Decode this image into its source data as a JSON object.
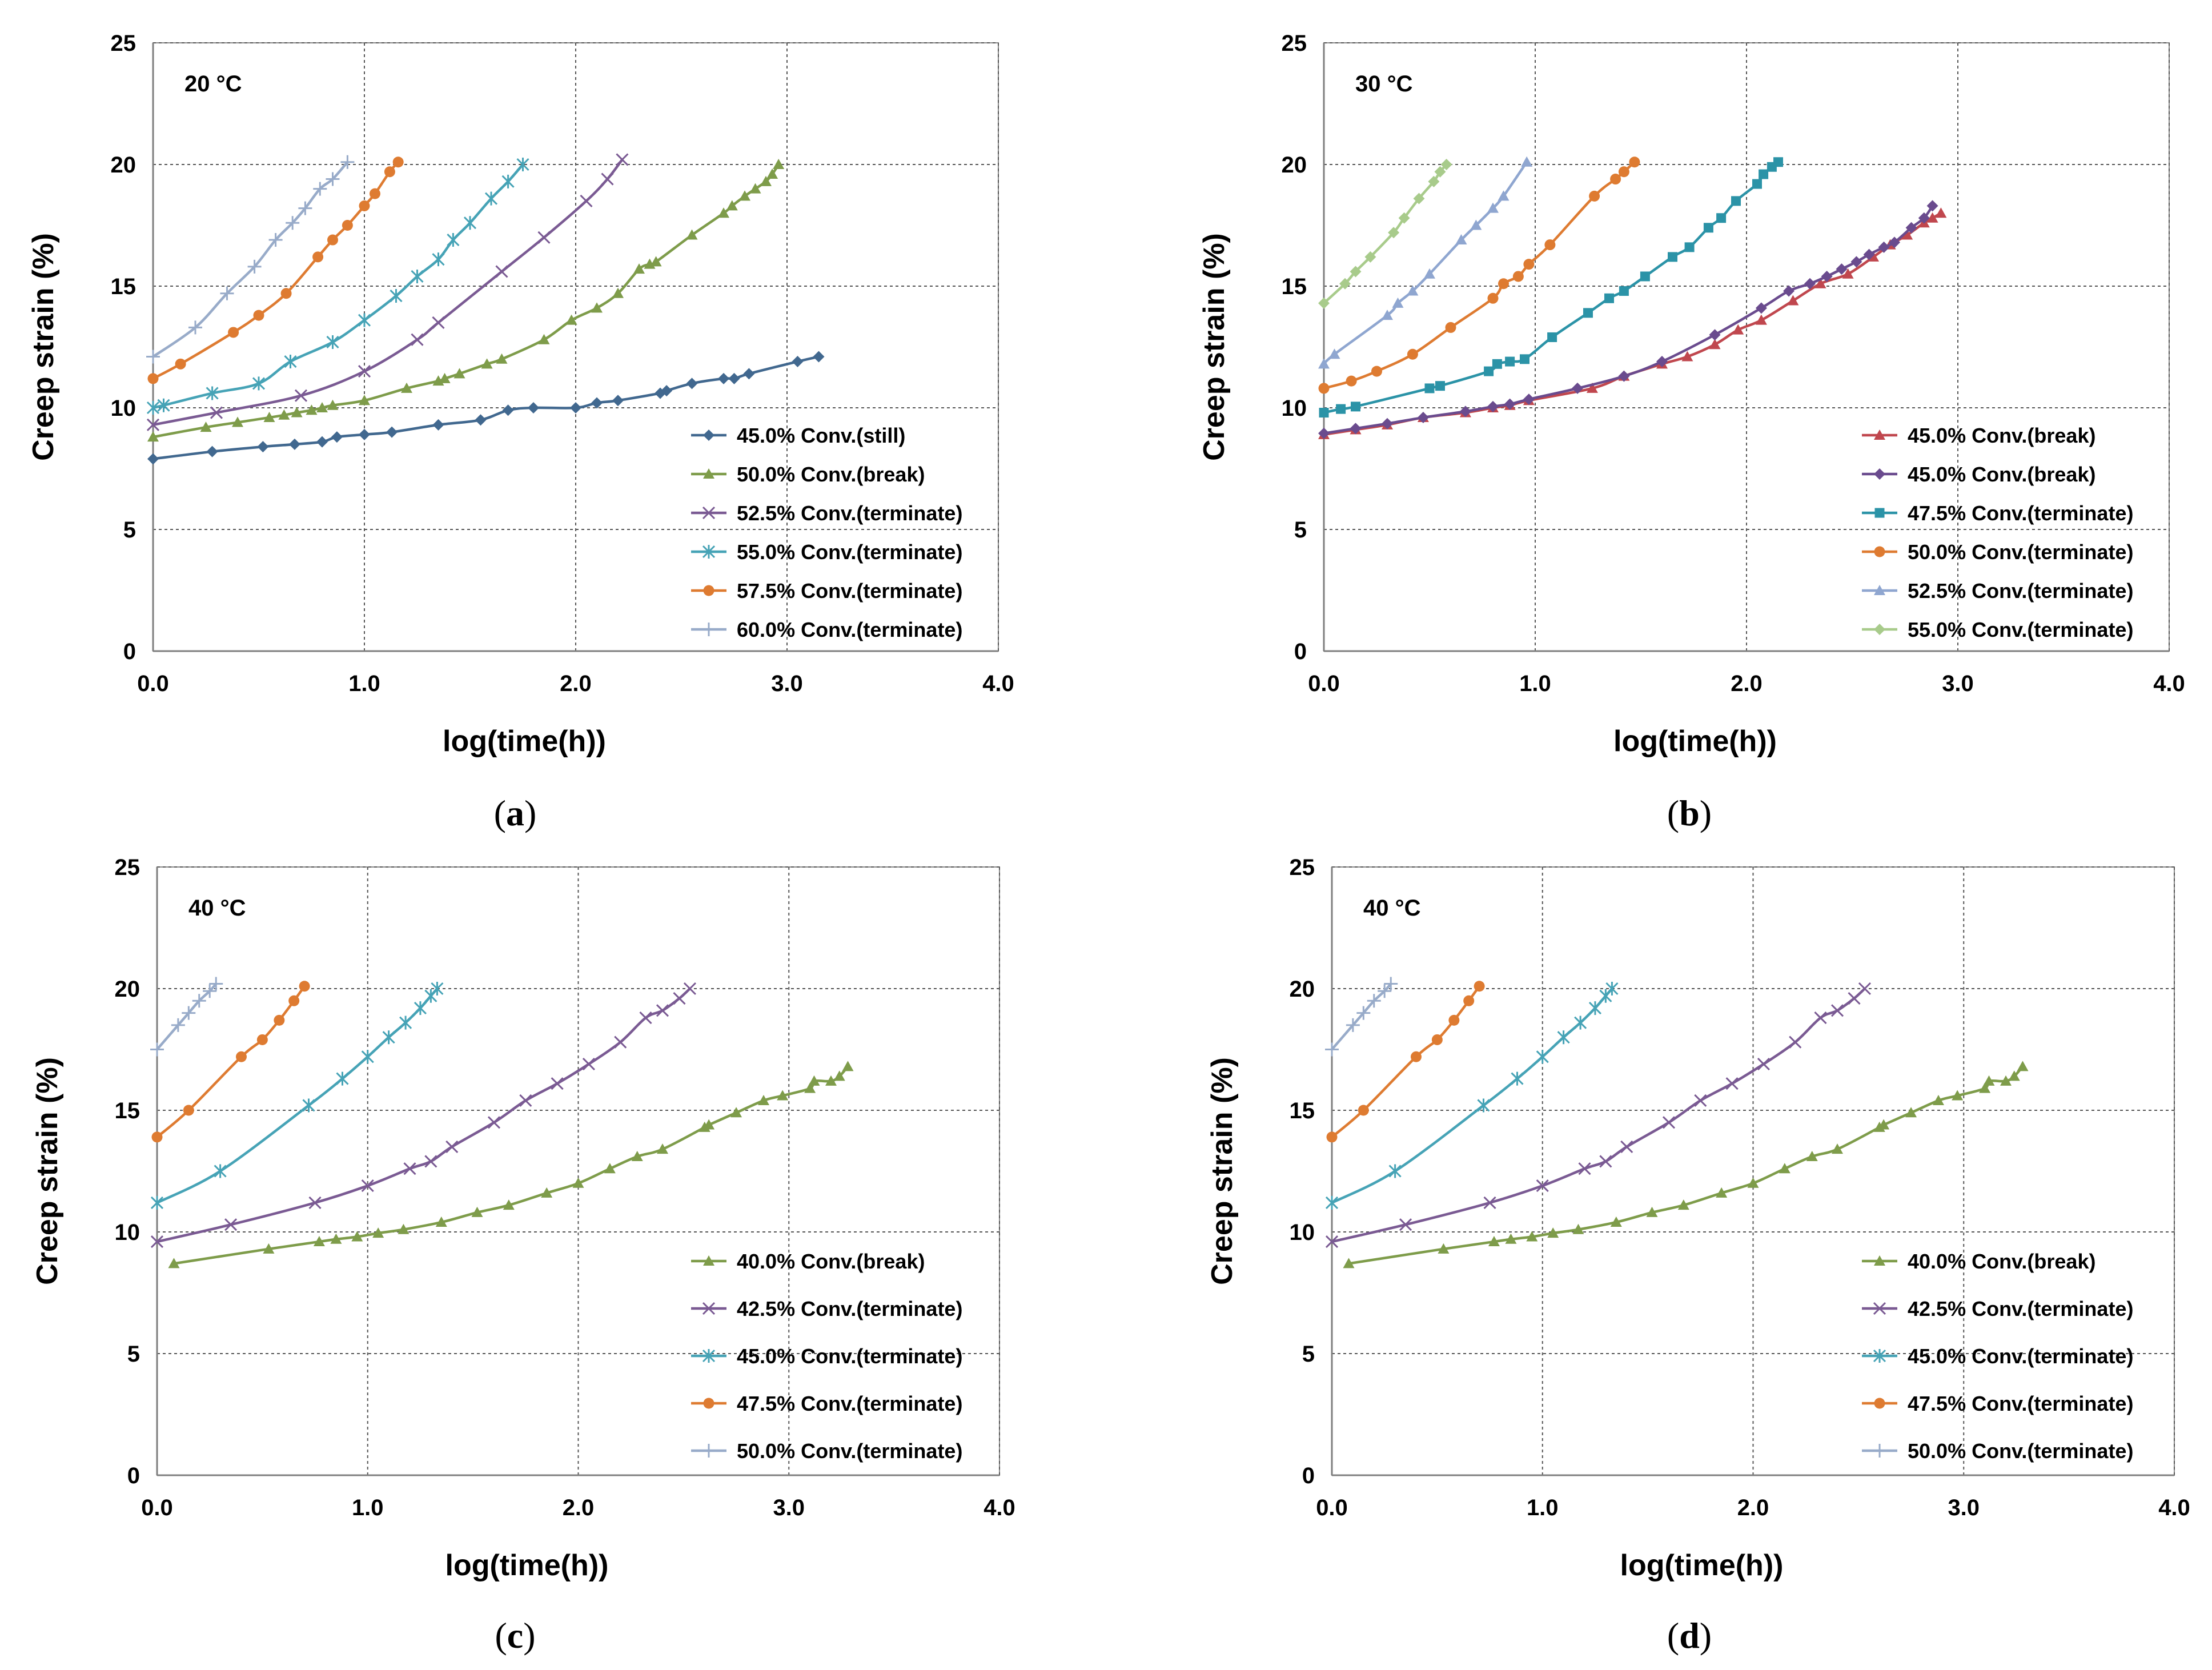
{
  "figure": {
    "captions": [
      "(a)",
      "(b)",
      "(c)",
      "(d)"
    ]
  },
  "chart_data": [
    {
      "type": "line",
      "panel": "a",
      "caption_letter": "a",
      "temperature_label": "20 °C",
      "xlabel": "log(time(h))",
      "ylabel": "Creep strain (%)",
      "xlim": [
        0,
        4
      ],
      "ylim": [
        0,
        25
      ],
      "xticks": [
        "0.0",
        "1.0",
        "2.0",
        "3.0",
        "4.0"
      ],
      "yticks": [
        "0",
        "5",
        "10",
        "15",
        "20",
        "25"
      ],
      "grid": true,
      "legend_position": "bottom-right",
      "series": [
        {
          "name": "45.0% Conv.(still)",
          "color": "#41688f",
          "marker": "diamond",
          "x": [
            0,
            0.28,
            0.52,
            0.67,
            0.8,
            0.87,
            1.0,
            1.13,
            1.35,
            1.55,
            1.68,
            1.8,
            2.0,
            2.1,
            2.2,
            2.4,
            2.43,
            2.55,
            2.7,
            2.75,
            2.82,
            3.05,
            3.15
          ],
          "y": [
            7.9,
            8.2,
            8.4,
            8.5,
            8.6,
            8.8,
            8.9,
            9.0,
            9.3,
            9.5,
            9.9,
            10.0,
            10.0,
            10.2,
            10.3,
            10.6,
            10.7,
            11.0,
            11.2,
            11.2,
            11.4,
            11.9,
            12.1
          ]
        },
        {
          "name": "50.0% Conv.(break)",
          "color": "#7e9c4a",
          "marker": "triangle",
          "x": [
            0,
            0.25,
            0.4,
            0.55,
            0.62,
            0.68,
            0.75,
            0.8,
            0.85,
            1.0,
            1.2,
            1.35,
            1.38,
            1.45,
            1.58,
            1.65,
            1.85,
            1.98,
            2.1,
            2.2,
            2.3,
            2.35,
            2.38,
            2.55,
            2.7,
            2.74,
            2.8,
            2.85,
            2.9,
            2.93,
            2.96
          ],
          "y": [
            8.8,
            9.2,
            9.4,
            9.6,
            9.7,
            9.8,
            9.9,
            10.0,
            10.1,
            10.3,
            10.8,
            11.1,
            11.2,
            11.4,
            11.8,
            12.0,
            12.8,
            13.6,
            14.1,
            14.7,
            15.7,
            15.9,
            16.0,
            17.1,
            18.0,
            18.3,
            18.7,
            19.0,
            19.3,
            19.6,
            20.0
          ]
        },
        {
          "name": "52.5% Conv.(terminate)",
          "color": "#7a5a93",
          "marker": "x",
          "x": [
            0,
            0.3,
            0.7,
            1.0,
            1.25,
            1.35,
            1.65,
            1.85,
            2.05,
            2.15,
            2.22
          ],
          "y": [
            9.3,
            9.8,
            10.5,
            11.5,
            12.8,
            13.5,
            15.6,
            17.0,
            18.5,
            19.4,
            20.2
          ]
        },
        {
          "name": "55.0% Conv.(terminate)",
          "color": "#46a3b6",
          "marker": "asterisk",
          "x": [
            0,
            0.05,
            0.28,
            0.5,
            0.65,
            0.85,
            1.0,
            1.15,
            1.25,
            1.35,
            1.42,
            1.5,
            1.6,
            1.68,
            1.75
          ],
          "y": [
            10.0,
            10.1,
            10.6,
            11.0,
            11.9,
            12.7,
            13.6,
            14.6,
            15.4,
            16.1,
            16.9,
            17.6,
            18.6,
            19.3,
            20.0
          ]
        },
        {
          "name": "57.5% Conv.(terminate)",
          "color": "#de7b31",
          "marker": "circle",
          "x": [
            0,
            0.13,
            0.38,
            0.5,
            0.63,
            0.78,
            0.85,
            0.92,
            1.0,
            1.05,
            1.12,
            1.16
          ],
          "y": [
            11.2,
            11.8,
            13.1,
            13.8,
            14.7,
            16.2,
            16.9,
            17.5,
            18.3,
            18.8,
            19.7,
            20.1
          ]
        },
        {
          "name": "60.0% Conv.(terminate)",
          "color": "#98abc9",
          "marker": "plus",
          "x": [
            0,
            0.2,
            0.35,
            0.48,
            0.58,
            0.66,
            0.72,
            0.79,
            0.85,
            0.92
          ],
          "y": [
            12.1,
            13.3,
            14.7,
            15.8,
            16.9,
            17.6,
            18.2,
            19.0,
            19.4,
            20.1
          ]
        }
      ]
    },
    {
      "type": "line",
      "panel": "b",
      "caption_letter": "b",
      "temperature_label": "30 °C",
      "xlabel": "log(time(h))",
      "ylabel": "Creep strain (%)",
      "xlim": [
        0,
        4
      ],
      "ylim": [
        0,
        25
      ],
      "xticks": [
        "0.0",
        "1.0",
        "2.0",
        "3.0",
        "4.0"
      ],
      "yticks": [
        "0",
        "5",
        "10",
        "15",
        "20",
        "25"
      ],
      "grid": true,
      "legend_position": "bottom-right",
      "series": [
        {
          "name": "45.0% Conv.(break)",
          "color": "#c0474e",
          "marker": "triangle",
          "x": [
            0,
            0.15,
            0.3,
            0.47,
            0.67,
            0.8,
            0.88,
            0.97,
            1.27,
            1.42,
            1.6,
            1.72,
            1.85,
            1.96,
            2.07,
            2.22,
            2.35,
            2.48,
            2.6,
            2.68,
            2.76,
            2.84,
            2.88,
            2.92
          ],
          "y": [
            8.9,
            9.1,
            9.3,
            9.6,
            9.8,
            10.0,
            10.1,
            10.3,
            10.8,
            11.3,
            11.8,
            12.1,
            12.6,
            13.2,
            13.6,
            14.4,
            15.1,
            15.5,
            16.2,
            16.7,
            17.1,
            17.6,
            17.8,
            18.0
          ]
        },
        {
          "name": "45.0% Conv.(break)",
          "color": "#6a4b8e",
          "marker": "diamond",
          "x": [
            0,
            0.15,
            0.3,
            0.47,
            0.67,
            0.8,
            0.88,
            0.97,
            1.2,
            1.42,
            1.6,
            1.85,
            2.07,
            2.2,
            2.3,
            2.38,
            2.45,
            2.52,
            2.58,
            2.65,
            2.7,
            2.78,
            2.84,
            2.88
          ],
          "y": [
            8.95,
            9.15,
            9.35,
            9.6,
            9.85,
            10.05,
            10.15,
            10.35,
            10.8,
            11.3,
            11.9,
            13.0,
            14.1,
            14.8,
            15.1,
            15.4,
            15.7,
            16.0,
            16.3,
            16.6,
            16.8,
            17.4,
            17.8,
            18.3
          ]
        },
        {
          "name": "47.5% Conv.(terminate)",
          "color": "#2b93a7",
          "marker": "square",
          "x": [
            0,
            0.08,
            0.15,
            0.5,
            0.55,
            0.78,
            0.82,
            0.88,
            0.95,
            1.08,
            1.25,
            1.35,
            1.42,
            1.52,
            1.65,
            1.73,
            1.82,
            1.88,
            1.95,
            2.05,
            2.08,
            2.12,
            2.15
          ],
          "y": [
            9.8,
            9.95,
            10.05,
            10.8,
            10.9,
            11.5,
            11.8,
            11.9,
            12.0,
            12.9,
            13.9,
            14.5,
            14.8,
            15.4,
            16.2,
            16.6,
            17.4,
            17.8,
            18.5,
            19.2,
            19.6,
            19.9,
            20.1
          ]
        },
        {
          "name": "50.0% Conv.(terminate)",
          "color": "#de7b31",
          "marker": "circle",
          "x": [
            0,
            0.13,
            0.25,
            0.42,
            0.6,
            0.8,
            0.85,
            0.92,
            0.97,
            1.07,
            1.28,
            1.38,
            1.42,
            1.47
          ],
          "y": [
            10.8,
            11.1,
            11.5,
            12.2,
            13.3,
            14.5,
            15.1,
            15.4,
            15.9,
            16.7,
            18.7,
            19.4,
            19.7,
            20.1
          ]
        },
        {
          "name": "52.5% Conv.(terminate)",
          "color": "#8fa6d0",
          "marker": "triangle",
          "x": [
            0,
            0.05,
            0.3,
            0.35,
            0.42,
            0.5,
            0.65,
            0.72,
            0.8,
            0.85,
            0.96
          ],
          "y": [
            11.8,
            12.2,
            13.8,
            14.3,
            14.8,
            15.5,
            16.9,
            17.5,
            18.2,
            18.7,
            20.1
          ]
        },
        {
          "name": "55.0% Conv.(terminate)",
          "color": "#a8cb8b",
          "marker": "diamond",
          "x": [
            0,
            0.1,
            0.15,
            0.22,
            0.33,
            0.38,
            0.45,
            0.52,
            0.55,
            0.58
          ],
          "y": [
            14.3,
            15.1,
            15.6,
            16.2,
            17.2,
            17.8,
            18.6,
            19.3,
            19.7,
            20.0
          ]
        }
      ]
    },
    {
      "type": "line",
      "panel": "c",
      "caption_letter": "c",
      "temperature_label": "40 °C",
      "xlabel": "log(time(h))",
      "ylabel": "Creep strain (%)",
      "xlim": [
        0,
        4
      ],
      "ylim": [
        0,
        25
      ],
      "xticks": [
        "0.0",
        "1.0",
        "2.0",
        "3.0",
        "4.0"
      ],
      "yticks": [
        "0",
        "5",
        "10",
        "15",
        "20",
        "25"
      ],
      "grid": true,
      "legend_position": "bottom-right",
      "series": [
        {
          "name": "40.0% Conv.(break)",
          "color": "#7e9c4a",
          "marker": "triangle",
          "x": [
            0.08,
            0.53,
            0.77,
            0.85,
            0.95,
            1.05,
            1.17,
            1.35,
            1.52,
            1.67,
            1.85,
            2.0,
            2.15,
            2.28,
            2.4,
            2.6,
            2.62,
            2.75,
            2.88,
            2.97,
            3.1,
            3.12,
            3.2,
            3.24,
            3.28
          ],
          "y": [
            8.7,
            9.3,
            9.6,
            9.7,
            9.8,
            9.95,
            10.1,
            10.4,
            10.8,
            11.1,
            11.6,
            12.0,
            12.6,
            13.1,
            13.4,
            14.3,
            14.4,
            14.9,
            15.4,
            15.6,
            15.9,
            16.2,
            16.2,
            16.4,
            16.8
          ]
        },
        {
          "name": "42.5% Conv.(terminate)",
          "color": "#7a5a93",
          "marker": "x",
          "x": [
            0,
            0.35,
            0.75,
            1.0,
            1.2,
            1.3,
            1.4,
            1.6,
            1.75,
            1.9,
            2.05,
            2.2,
            2.32,
            2.4,
            2.48,
            2.53
          ],
          "y": [
            9.6,
            10.3,
            11.2,
            11.9,
            12.6,
            12.9,
            13.5,
            14.5,
            15.4,
            16.1,
            16.9,
            17.8,
            18.8,
            19.1,
            19.6,
            20.0
          ]
        },
        {
          "name": "45.0% Conv.(terminate)",
          "color": "#46a3b6",
          "marker": "asterisk",
          "x": [
            0,
            0.3,
            0.72,
            0.88,
            1.0,
            1.1,
            1.18,
            1.25,
            1.3,
            1.33
          ],
          "y": [
            11.2,
            12.5,
            15.2,
            16.3,
            17.2,
            18.0,
            18.6,
            19.2,
            19.7,
            20.0
          ]
        },
        {
          "name": "47.5% Conv.(terminate)",
          "color": "#de7b31",
          "marker": "circle",
          "x": [
            0,
            0.15,
            0.4,
            0.5,
            0.58,
            0.65,
            0.7
          ],
          "y": [
            13.9,
            15.0,
            17.2,
            17.9,
            18.7,
            19.5,
            20.1
          ]
        },
        {
          "name": "50.0% Conv.(terminate)",
          "color": "#98abc9",
          "marker": "plus",
          "x": [
            0,
            0.1,
            0.15,
            0.2,
            0.25,
            0.28
          ],
          "y": [
            17.5,
            18.5,
            19.0,
            19.5,
            19.9,
            20.2
          ]
        }
      ]
    },
    {
      "type": "line",
      "panel": "d",
      "caption_letter": "d",
      "temperature_label": "40 °C",
      "xlabel": "log(time(h))",
      "ylabel": "Creep strain (%)",
      "xlim": [
        0,
        4
      ],
      "ylim": [
        0,
        25
      ],
      "xticks": [
        "0.0",
        "1.0",
        "2.0",
        "3.0",
        "4.0"
      ],
      "yticks": [
        "0",
        "5",
        "10",
        "15",
        "20",
        "25"
      ],
      "grid": true,
      "legend_position": "bottom-right",
      "series": [
        {
          "name": "40.0% Conv.(break)",
          "color": "#7e9c4a",
          "marker": "triangle",
          "x": [
            0.08,
            0.53,
            0.77,
            0.85,
            0.95,
            1.05,
            1.17,
            1.35,
            1.52,
            1.67,
            1.85,
            2.0,
            2.15,
            2.28,
            2.4,
            2.6,
            2.62,
            2.75,
            2.88,
            2.97,
            3.1,
            3.12,
            3.2,
            3.24,
            3.28
          ],
          "y": [
            8.7,
            9.3,
            9.6,
            9.7,
            9.8,
            9.95,
            10.1,
            10.4,
            10.8,
            11.1,
            11.6,
            12.0,
            12.6,
            13.1,
            13.4,
            14.3,
            14.4,
            14.9,
            15.4,
            15.6,
            15.9,
            16.2,
            16.2,
            16.4,
            16.8
          ]
        },
        {
          "name": "42.5% Conv.(terminate)",
          "color": "#7a5a93",
          "marker": "x",
          "x": [
            0,
            0.35,
            0.75,
            1.0,
            1.2,
            1.3,
            1.4,
            1.6,
            1.75,
            1.9,
            2.05,
            2.2,
            2.32,
            2.4,
            2.48,
            2.53
          ],
          "y": [
            9.6,
            10.3,
            11.2,
            11.9,
            12.6,
            12.9,
            13.5,
            14.5,
            15.4,
            16.1,
            16.9,
            17.8,
            18.8,
            19.1,
            19.6,
            20.0
          ]
        },
        {
          "name": "45.0% Conv.(terminate)",
          "color": "#46a3b6",
          "marker": "asterisk",
          "x": [
            0,
            0.3,
            0.72,
            0.88,
            1.0,
            1.1,
            1.18,
            1.25,
            1.3,
            1.33
          ],
          "y": [
            11.2,
            12.5,
            15.2,
            16.3,
            17.2,
            18.0,
            18.6,
            19.2,
            19.7,
            20.0
          ]
        },
        {
          "name": "47.5% Conv.(terminate)",
          "color": "#de7b31",
          "marker": "circle",
          "x": [
            0,
            0.15,
            0.4,
            0.5,
            0.58,
            0.65,
            0.7
          ],
          "y": [
            13.9,
            15.0,
            17.2,
            17.9,
            18.7,
            19.5,
            20.1
          ]
        },
        {
          "name": "50.0% Conv.(terminate)",
          "color": "#98abc9",
          "marker": "plus",
          "x": [
            0,
            0.1,
            0.15,
            0.2,
            0.25,
            0.28
          ],
          "y": [
            17.5,
            18.5,
            19.0,
            19.5,
            19.9,
            20.2
          ]
        }
      ]
    }
  ]
}
